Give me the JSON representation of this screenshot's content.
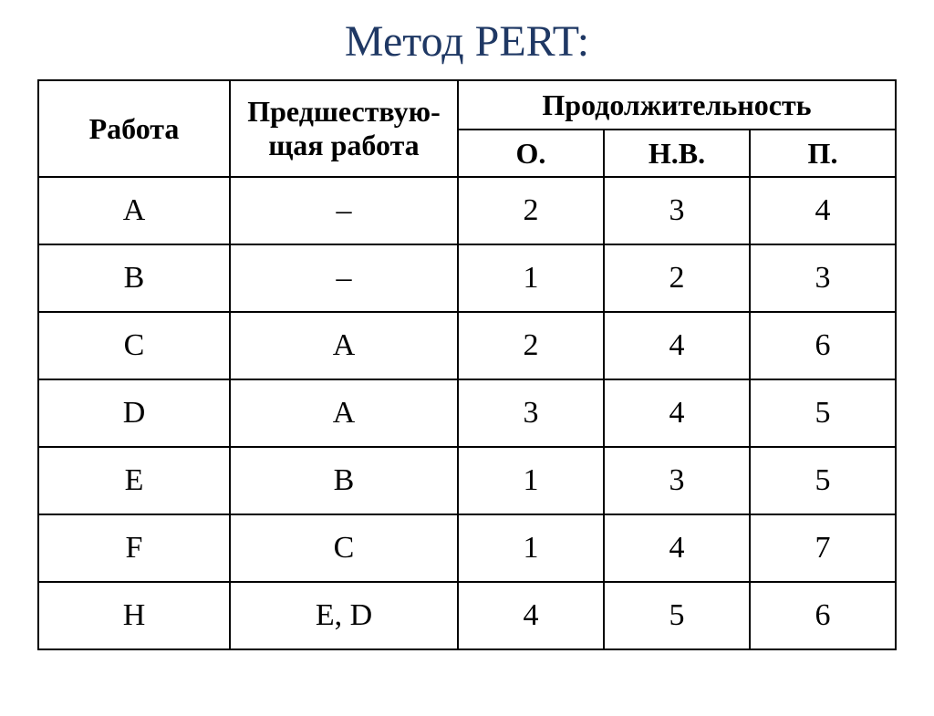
{
  "title": "Метод PERT:",
  "title_color": "#1f3864",
  "table": {
    "border_color": "#000000",
    "background": "#ffffff",
    "header_font_weight": "bold",
    "columns": {
      "work": "Работа",
      "predecessor_line1": "Предшествую-",
      "predecessor_line2": "щая работа",
      "duration": "Продолжительность",
      "o": "О.",
      "nv": "Н.В.",
      "p": "П."
    },
    "rows": [
      {
        "work": "A",
        "pred": "–",
        "o": "2",
        "nv": "3",
        "p": "4"
      },
      {
        "work": "B",
        "pred": "–",
        "o": "1",
        "nv": "2",
        "p": "3"
      },
      {
        "work": "C",
        "pred": "A",
        "o": "2",
        "nv": "4",
        "p": "6"
      },
      {
        "work": "D",
        "pred": "A",
        "o": "3",
        "nv": "4",
        "p": "5"
      },
      {
        "work": "E",
        "pred": "B",
        "o": "1",
        "nv": "3",
        "p": "5"
      },
      {
        "work": "F",
        "pred": "C",
        "o": "1",
        "nv": "4",
        "p": "7"
      },
      {
        "work": "H",
        "pred": "E, D",
        "o": "4",
        "nv": "5",
        "p": "6"
      }
    ]
  }
}
